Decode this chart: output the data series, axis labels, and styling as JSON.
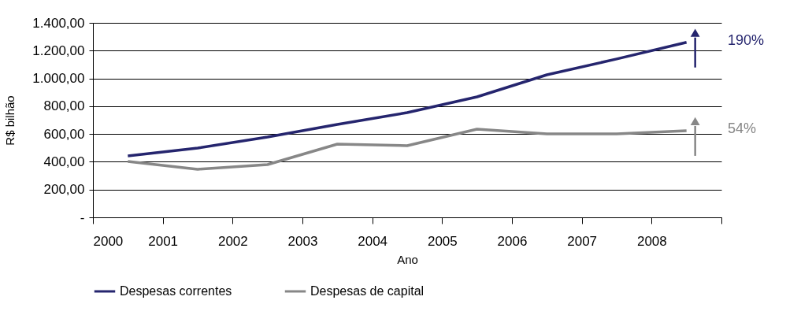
{
  "chart_data": {
    "type": "line",
    "xlabel": "Ano",
    "ylabel": "R$ bilhão",
    "x": [
      2000.5,
      2001.5,
      2002.5,
      2003.5,
      2004.5,
      2005.5,
      2006.5,
      2007.5,
      2008.5
    ],
    "series": [
      {
        "name": "Despesas correntes",
        "color": "#25256e",
        "values": [
          442,
          499,
          578,
          669,
          754,
          867,
          1026,
          1140,
          1260
        ]
      },
      {
        "name": "Despesas de capital",
        "color": "#878787",
        "values": [
          402,
          346,
          380,
          527,
          516,
          635,
          601,
          601,
          624
        ]
      }
    ],
    "xlim": [
      2000,
      2009
    ],
    "xticks": [
      2000,
      2001,
      2002,
      2003,
      2004,
      2005,
      2006,
      2007,
      2008,
      {
        "value": 2009,
        "label": null
      }
    ],
    "ylim": [
      0,
      1400
    ],
    "yticks": [
      {
        "value": 0,
        "label": "-"
      },
      {
        "value": 200,
        "label": "200,00"
      },
      {
        "value": 400,
        "label": "400,00"
      },
      {
        "value": 600,
        "label": "600,00"
      },
      {
        "value": 800,
        "label": "800,00"
      },
      {
        "value": 1000,
        "label": "1.000,00"
      },
      {
        "value": 1200,
        "label": "1.200,00"
      },
      {
        "value": 1400,
        "label": "1.400,00"
      }
    ],
    "annotations": [
      "190%",
      "54%"
    ],
    "grid": "y",
    "legend": "bottom",
    "marker": "none",
    "line_style": "solid"
  }
}
